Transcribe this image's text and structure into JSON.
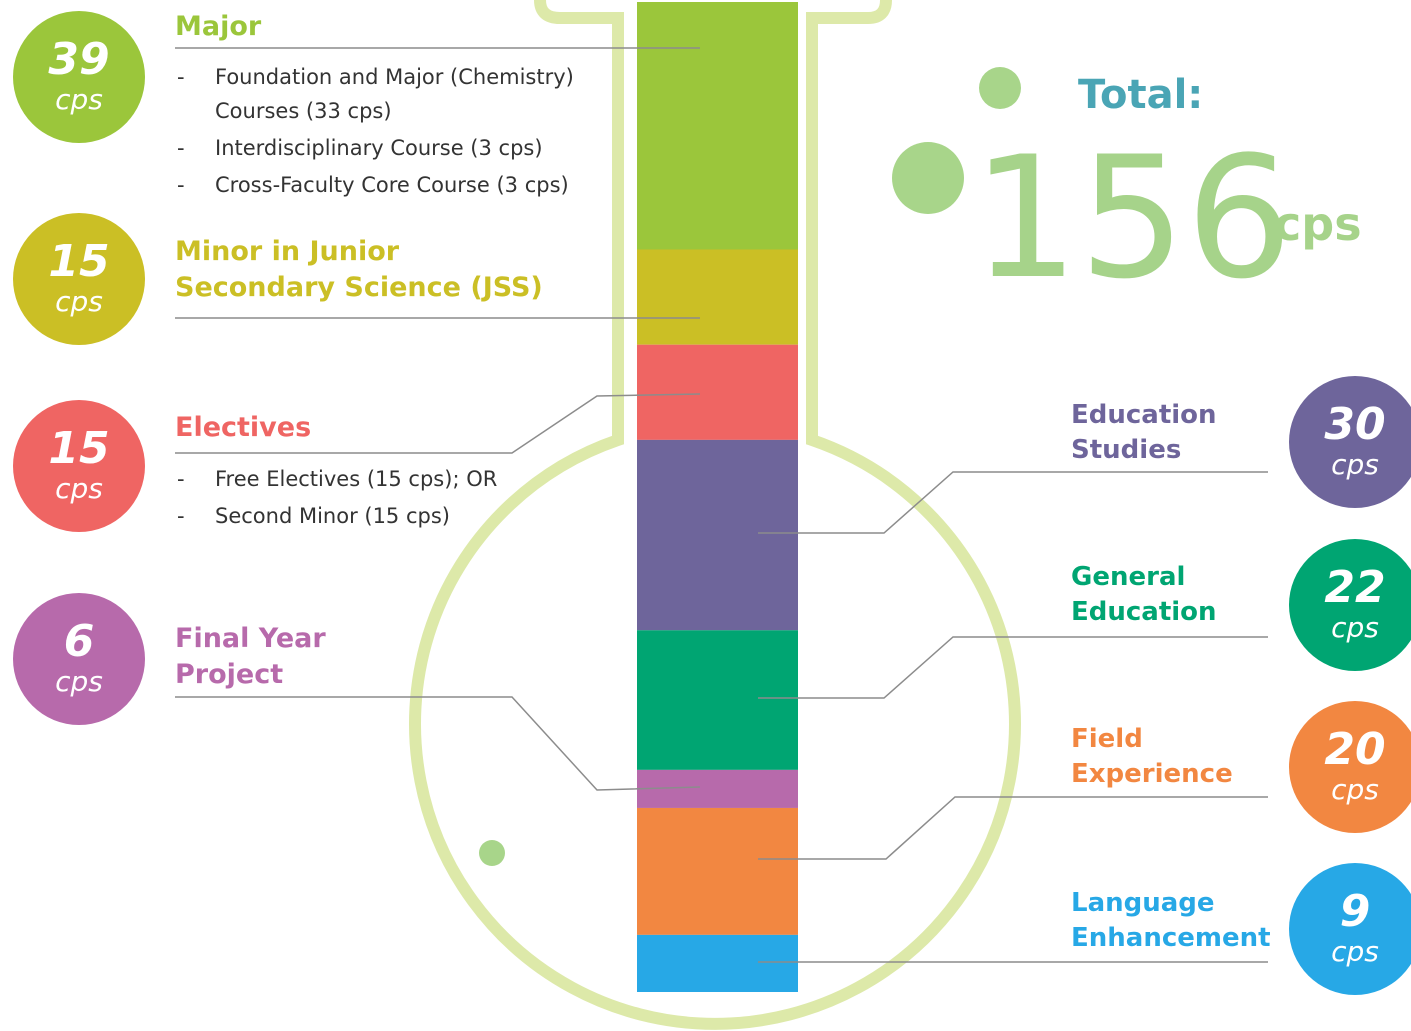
{
  "total": {
    "label": "Total:",
    "value": 156,
    "unit": "cps"
  },
  "segments": [
    {
      "title_lines": [
        "Major"
      ],
      "value": 39,
      "unit": "cps",
      "color": "#9bc63b",
      "details": [
        "Foundation and Major (Chemistry) Courses (33 cps)",
        "Interdisciplinary Course (3 cps)",
        "Cross-Faculty Core Course (3 cps)"
      ]
    },
    {
      "title_lines": [
        "Minor in Junior",
        "Secondary Science (JSS)"
      ],
      "value": 15,
      "unit": "cps",
      "color": "#cbbf25"
    },
    {
      "title_lines": [
        "Electives"
      ],
      "value": 15,
      "unit": "cps",
      "color": "#ef6563",
      "details": [
        "Free Electives (15 cps); OR",
        "Second Minor (15 cps)"
      ]
    },
    {
      "title_lines": [
        "Education",
        "Studies"
      ],
      "value": 30,
      "unit": "cps",
      "color": "#6e659b"
    },
    {
      "title_lines": [
        "General",
        "Education"
      ],
      "value": 22,
      "unit": "cps",
      "color": "#00a572"
    },
    {
      "title_lines": [
        "Final Year",
        "Project"
      ],
      "value": 6,
      "unit": "cps",
      "color": "#b76aab"
    },
    {
      "title_lines": [
        "Field",
        "Experience"
      ],
      "value": 20,
      "unit": "cps",
      "color": "#f28741"
    },
    {
      "title_lines": [
        "Language",
        "Enhancement"
      ],
      "value": 9,
      "unit": "cps",
      "color": "#27a8e6"
    }
  ]
}
